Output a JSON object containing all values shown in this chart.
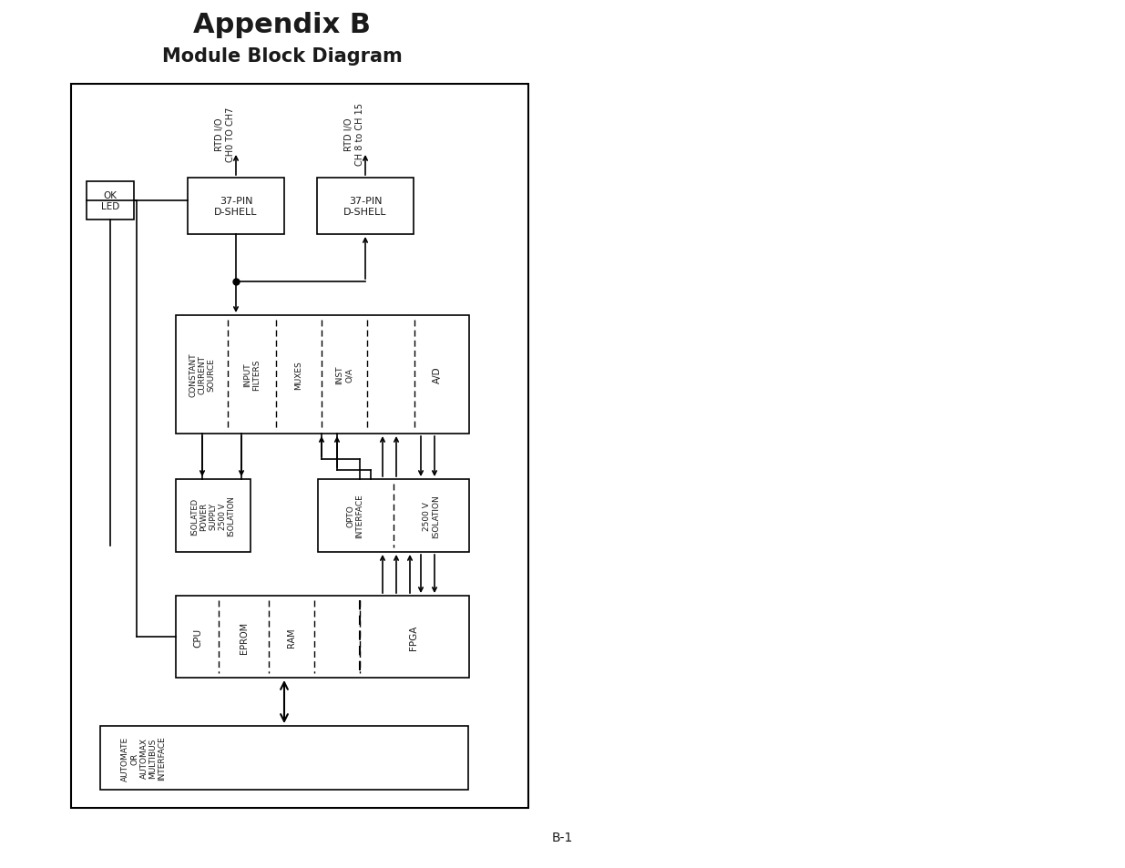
{
  "title": "Appendix B",
  "subtitle": "Module Block Diagram",
  "bg": "#ffffff",
  "fg": "#1a1a1a",
  "page_num": "B-1",
  "figsize": [
    12.35,
    9.54
  ],
  "dpi": 100
}
